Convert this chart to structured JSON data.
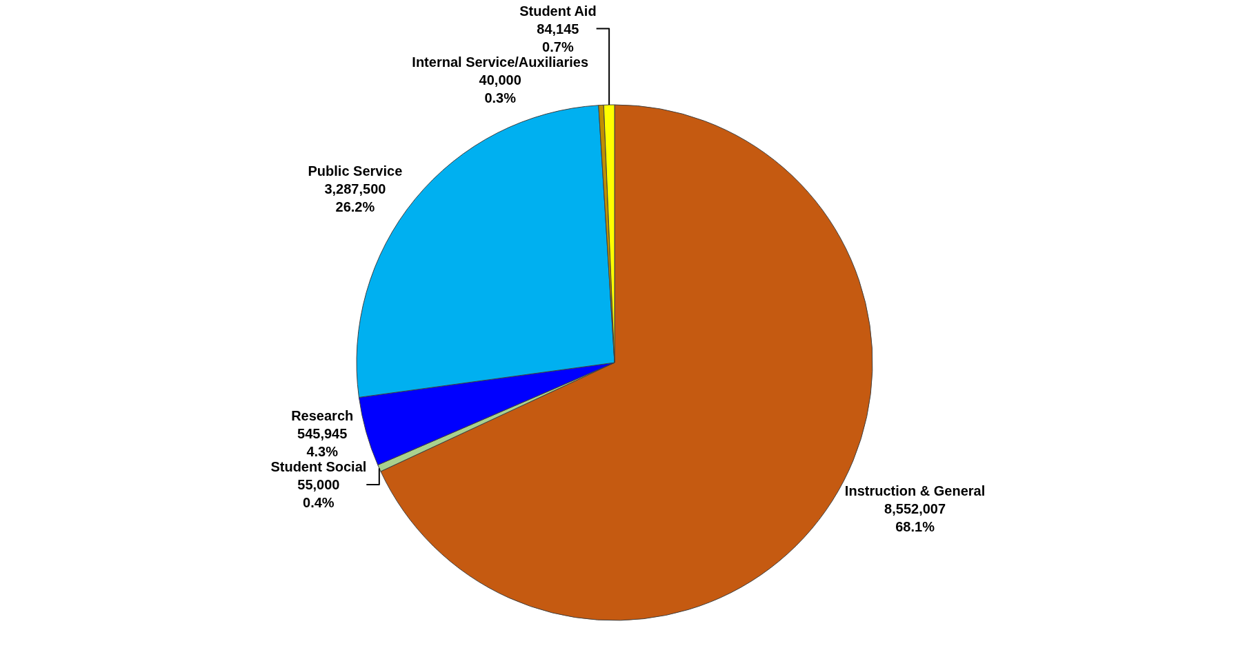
{
  "chart_data": {
    "type": "pie",
    "categories": [
      "Instruction & General",
      "Student Social",
      "Research",
      "Public Service",
      "Internal Service/Auxiliaries",
      "Student Aid"
    ],
    "values": [
      8552007,
      55000,
      545945,
      3287500,
      40000,
      84145
    ],
    "value_labels": [
      "8,552,007\n68.1%",
      "55,000\n0.4%",
      "545,945\n4.3%",
      "3,287,500\n26.2%",
      "40,000\n0.3%",
      "84,145\n0.7%"
    ],
    "colors": [
      "#c55a11",
      "#a9d18e",
      "#0000ff",
      "#00b0f0",
      "#bf8f00",
      "#ffff00"
    ]
  }
}
